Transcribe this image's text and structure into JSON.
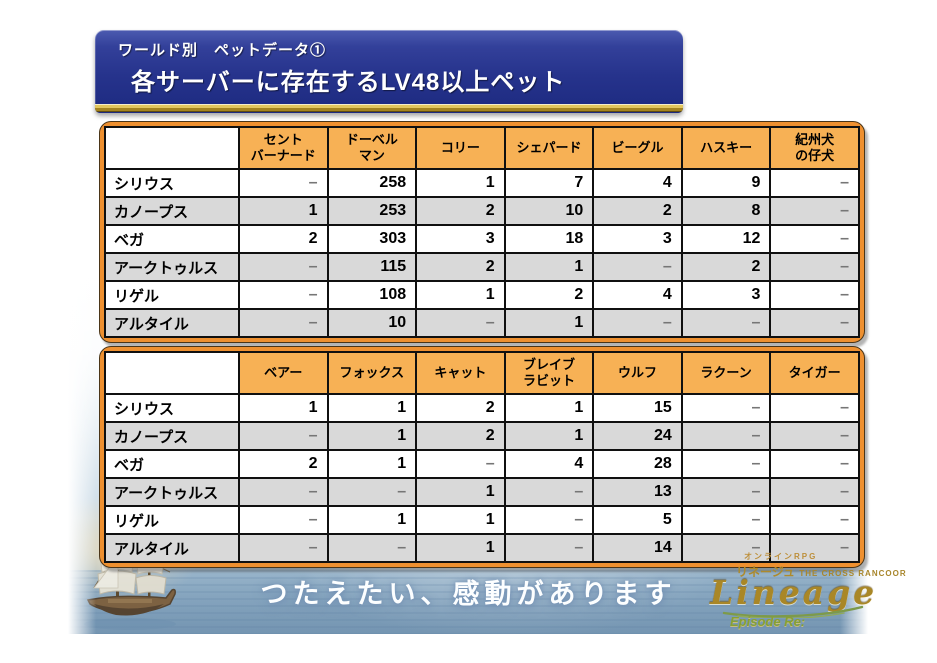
{
  "banner": {
    "kicker": "ワールド別　ペットデータ①",
    "title": "各サーバーに存在するLV48以上ペット"
  },
  "tables": [
    {
      "corner": "",
      "columns": [
        "セント\nバーナード",
        "ドーベル\nマン",
        "コリー",
        "シェパード",
        "ビーグル",
        "ハスキー",
        "紀州犬\nの仔犬"
      ],
      "rows": [
        {
          "label": "シリウス",
          "values": [
            "–",
            "258",
            "1",
            "7",
            "4",
            "9",
            "–"
          ]
        },
        {
          "label": "カノープス",
          "values": [
            "1",
            "253",
            "2",
            "10",
            "2",
            "8",
            "–"
          ]
        },
        {
          "label": "ベガ",
          "values": [
            "2",
            "303",
            "3",
            "18",
            "3",
            "12",
            "–"
          ]
        },
        {
          "label": "アークトゥルス",
          "values": [
            "–",
            "115",
            "2",
            "1",
            "–",
            "2",
            "–"
          ]
        },
        {
          "label": "リゲル",
          "values": [
            "–",
            "108",
            "1",
            "2",
            "4",
            "3",
            "–"
          ]
        },
        {
          "label": "アルタイル",
          "values": [
            "–",
            "10",
            "–",
            "1",
            "–",
            "–",
            "–"
          ]
        }
      ]
    },
    {
      "corner": "",
      "columns": [
        "ベアー",
        "フォックス",
        "キャット",
        "ブレイブ\nラビット",
        "ウルフ",
        "ラクーン",
        "タイガー"
      ],
      "rows": [
        {
          "label": "シリウス",
          "values": [
            "1",
            "1",
            "2",
            "1",
            "15",
            "–",
            "–"
          ]
        },
        {
          "label": "カノープス",
          "values": [
            "–",
            "1",
            "2",
            "1",
            "24",
            "–",
            "–"
          ]
        },
        {
          "label": "ベガ",
          "values": [
            "2",
            "1",
            "–",
            "4",
            "28",
            "–",
            "–"
          ]
        },
        {
          "label": "アークトゥルス",
          "values": [
            "–",
            "–",
            "1",
            "–",
            "13",
            "–",
            "–"
          ]
        },
        {
          "label": "リゲル",
          "values": [
            "–",
            "1",
            "1",
            "–",
            "5",
            "–",
            "–"
          ]
        },
        {
          "label": "アルタイル",
          "values": [
            "–",
            "–",
            "1",
            "–",
            "14",
            "–",
            "–"
          ]
        }
      ]
    }
  ],
  "footer": {
    "tagline": "つたえたい、感動があります",
    "logo": {
      "kicker": "オンラインRPG",
      "katakana": "リネージュ",
      "series": "THE CROSS RANCOOR",
      "wordmark": "Lineage",
      "episode": "Episode Re:"
    }
  },
  "colors": {
    "banner_navy": "#26338c",
    "banner_gold": "#e3c75e",
    "table_border_orange": "#ee9030",
    "header_orange": "#f7b155",
    "row_alt_gray": "#d9d9d9",
    "empty_marker": "–"
  }
}
